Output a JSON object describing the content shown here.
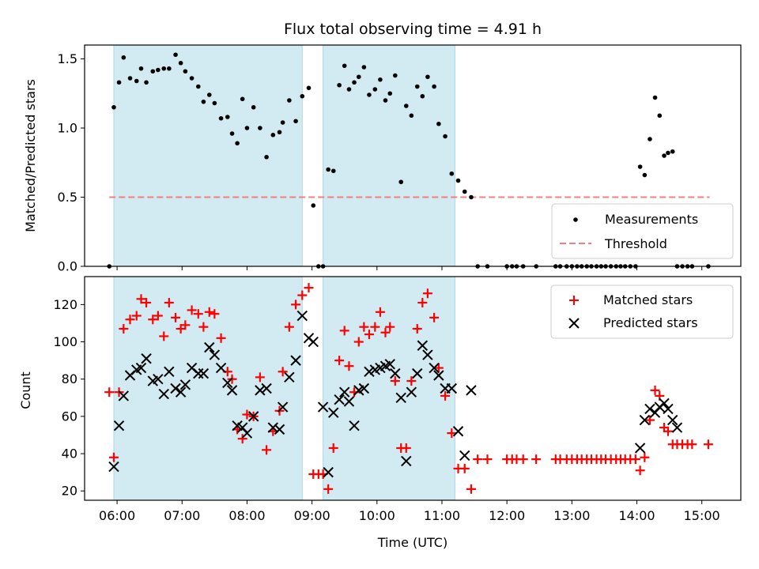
{
  "chart_data": {
    "title": "Flux total observing time = 4.91 h",
    "xlabel": "Time (UTC)",
    "x_unit": "hours UTC",
    "xlim": [
      5.5,
      15.6
    ],
    "x_ticks": [
      {
        "x": 6.0,
        "label": "06:00"
      },
      {
        "x": 7.0,
        "label": "07:00"
      },
      {
        "x": 8.0,
        "label": "08:00"
      },
      {
        "x": 9.0,
        "label": "09:00"
      },
      {
        "x": 10.0,
        "label": "10:00"
      },
      {
        "x": 11.0,
        "label": "11:00"
      },
      {
        "x": 12.0,
        "label": "12:00"
      },
      {
        "x": 13.0,
        "label": "13:00"
      },
      {
        "x": 14.0,
        "label": "14:00"
      },
      {
        "x": 15.0,
        "label": "15:00"
      }
    ],
    "observing_intervals": [
      [
        5.95,
        8.85
      ],
      [
        9.17,
        11.2
      ]
    ],
    "observing_color": "#add8e6",
    "top": {
      "ylabel": "Matched/Predicted stars",
      "ylim": [
        0,
        1.6
      ],
      "yticks": [
        0.0,
        0.5,
        1.0,
        1.5
      ],
      "ytick_labels": [
        "0.0",
        "0.5",
        "1.0",
        "1.5"
      ],
      "threshold": {
        "name": "Threshold",
        "value": 0.5,
        "x_range": [
          5.88,
          15.12
        ],
        "color": "#f08080"
      },
      "measurements": {
        "name": "Measurements",
        "color": "#000000",
        "x": [
          5.88,
          5.95,
          6.03,
          6.1,
          6.2,
          6.3,
          6.37,
          6.45,
          6.55,
          6.63,
          6.72,
          6.8,
          6.9,
          6.98,
          7.05,
          7.15,
          7.25,
          7.33,
          7.42,
          7.5,
          7.6,
          7.7,
          7.77,
          7.85,
          7.93,
          8.0,
          8.1,
          8.2,
          8.3,
          8.4,
          8.5,
          8.55,
          8.65,
          8.75,
          8.85,
          8.95,
          9.02,
          9.1,
          9.17,
          9.25,
          9.33,
          9.42,
          9.5,
          9.57,
          9.65,
          9.72,
          9.8,
          9.88,
          9.97,
          10.05,
          10.13,
          10.2,
          10.28,
          10.37,
          10.45,
          10.53,
          10.62,
          10.7,
          10.78,
          10.88,
          10.95,
          11.05,
          11.15,
          11.25,
          11.35,
          11.45,
          11.55,
          11.7,
          12.0,
          12.08,
          12.15,
          12.25,
          12.45,
          12.75,
          12.82,
          12.92,
          13.0,
          13.08,
          13.15,
          13.23,
          13.3,
          13.38,
          13.45,
          13.52,
          13.6,
          13.68,
          13.75,
          13.82,
          13.9,
          13.98,
          14.05,
          14.12,
          14.2,
          14.28,
          14.35,
          14.42,
          14.48,
          14.55,
          14.62,
          14.7,
          14.78,
          14.85,
          15.1
        ],
        "y": [
          0.0,
          1.15,
          1.33,
          1.51,
          1.36,
          1.34,
          1.43,
          1.33,
          1.41,
          1.42,
          1.43,
          1.43,
          1.53,
          1.47,
          1.41,
          1.36,
          1.3,
          1.19,
          1.24,
          1.18,
          1.07,
          1.08,
          0.96,
          0.89,
          1.21,
          1.0,
          1.15,
          1.0,
          0.79,
          0.95,
          0.97,
          1.04,
          1.2,
          1.05,
          1.23,
          1.29,
          0.44,
          0.0,
          0.0,
          0.7,
          0.69,
          1.31,
          1.45,
          1.28,
          1.33,
          1.37,
          1.44,
          1.24,
          1.28,
          1.35,
          1.2,
          1.25,
          1.38,
          0.61,
          1.16,
          1.09,
          1.3,
          1.23,
          1.37,
          1.3,
          1.03,
          0.94,
          0.67,
          0.62,
          0.54,
          0.5,
          0.0,
          0.0,
          0.0,
          0.0,
          0.0,
          0.0,
          0.0,
          0.0,
          0.0,
          0.0,
          0.0,
          0.0,
          0.0,
          0.0,
          0.0,
          0.0,
          0.0,
          0.0,
          0.0,
          0.0,
          0.0,
          0.0,
          0.0,
          0.0,
          0.72,
          0.66,
          0.92,
          1.22,
          1.09,
          0.8,
          0.82,
          0.83,
          0.0,
          0.0,
          0.0,
          0.0,
          0.0
        ]
      }
    },
    "bottom": {
      "ylabel": "Count",
      "ylim": [
        15,
        135
      ],
      "yticks": [
        20,
        40,
        60,
        80,
        100,
        120
      ],
      "ytick_labels": [
        "20",
        "40",
        "60",
        "80",
        "100",
        "120"
      ],
      "series": [
        {
          "name": "Matched stars",
          "marker": "plus",
          "color": "#ff0000",
          "x": [
            5.88,
            5.95,
            6.03,
            6.1,
            6.2,
            6.3,
            6.37,
            6.45,
            6.55,
            6.63,
            6.72,
            6.8,
            6.9,
            6.98,
            7.05,
            7.15,
            7.25,
            7.33,
            7.42,
            7.5,
            7.6,
            7.7,
            7.77,
            7.85,
            7.93,
            8.0,
            8.1,
            8.2,
            8.3,
            8.4,
            8.5,
            8.55,
            8.65,
            8.75,
            8.85,
            8.95,
            9.02,
            9.1,
            9.17,
            9.25,
            9.33,
            9.42,
            9.5,
            9.57,
            9.65,
            9.72,
            9.8,
            9.88,
            9.97,
            10.05,
            10.13,
            10.2,
            10.28,
            10.37,
            10.45,
            10.53,
            10.62,
            10.7,
            10.78,
            10.88,
            10.95,
            11.05,
            11.15,
            11.25,
            11.35,
            11.45,
            11.55,
            11.7,
            12.0,
            12.08,
            12.15,
            12.25,
            12.45,
            12.75,
            12.82,
            12.92,
            13.0,
            13.08,
            13.15,
            13.23,
            13.3,
            13.38,
            13.45,
            13.52,
            13.6,
            13.68,
            13.75,
            13.82,
            13.9,
            13.98,
            14.05,
            14.12,
            14.2,
            14.28,
            14.35,
            14.42,
            14.48,
            14.55,
            14.62,
            14.7,
            14.78,
            14.85,
            15.1
          ],
          "y": [
            73,
            38,
            73,
            107,
            112,
            114,
            123,
            121,
            112,
            114,
            103,
            121,
            113,
            107,
            109,
            117,
            115,
            108,
            116,
            115,
            102,
            84,
            80,
            53,
            48,
            61,
            60,
            81,
            42,
            52,
            63,
            84,
            108,
            120,
            125,
            129,
            29,
            29,
            29,
            21,
            43,
            90,
            106,
            87,
            73,
            100,
            108,
            104,
            108,
            116,
            105,
            108,
            79,
            43,
            43,
            79,
            107,
            121,
            126,
            113,
            86,
            71,
            51,
            32,
            32,
            21,
            37,
            37,
            37,
            37,
            37,
            37,
            37,
            37,
            37,
            37,
            37,
            37,
            37,
            37,
            37,
            37,
            37,
            37,
            37,
            37,
            37,
            37,
            37,
            37,
            31,
            38,
            58,
            74,
            71,
            54,
            52,
            45,
            45,
            45,
            45,
            45,
            45
          ]
        },
        {
          "name": "Predicted stars",
          "marker": "x",
          "color": "#000000",
          "x": [
            5.95,
            6.03,
            6.1,
            6.2,
            6.3,
            6.37,
            6.45,
            6.55,
            6.63,
            6.72,
            6.8,
            6.9,
            6.98,
            7.05,
            7.15,
            7.25,
            7.33,
            7.42,
            7.5,
            7.6,
            7.7,
            7.77,
            7.85,
            7.93,
            8.0,
            8.1,
            8.2,
            8.3,
            8.4,
            8.5,
            8.55,
            8.65,
            8.75,
            8.85,
            8.95,
            9.02,
            9.17,
            9.25,
            9.33,
            9.42,
            9.5,
            9.57,
            9.65,
            9.72,
            9.8,
            9.88,
            9.97,
            10.05,
            10.13,
            10.2,
            10.28,
            10.37,
            10.45,
            10.53,
            10.62,
            10.7,
            10.78,
            10.88,
            10.95,
            11.05,
            11.15,
            11.25,
            11.35,
            11.45,
            14.05,
            14.12,
            14.2,
            14.28,
            14.35,
            14.42,
            14.48,
            14.55,
            14.62
          ],
          "y": [
            33,
            55,
            71,
            82,
            85,
            86,
            91,
            79,
            80,
            72,
            84,
            75,
            73,
            77,
            86,
            83,
            83,
            97,
            93,
            86,
            78,
            74,
            55,
            54,
            51,
            60,
            74,
            75,
            54,
            53,
            65,
            81,
            90,
            114,
            102,
            100,
            65,
            30,
            62,
            69,
            73,
            68,
            55,
            74,
            75,
            84,
            85,
            86,
            87,
            88,
            83,
            70,
            36,
            73,
            83,
            98,
            93,
            86,
            82,
            75,
            75,
            52,
            39,
            74,
            43,
            58,
            64,
            62,
            65,
            67,
            64,
            58,
            54
          ]
        }
      ]
    }
  }
}
